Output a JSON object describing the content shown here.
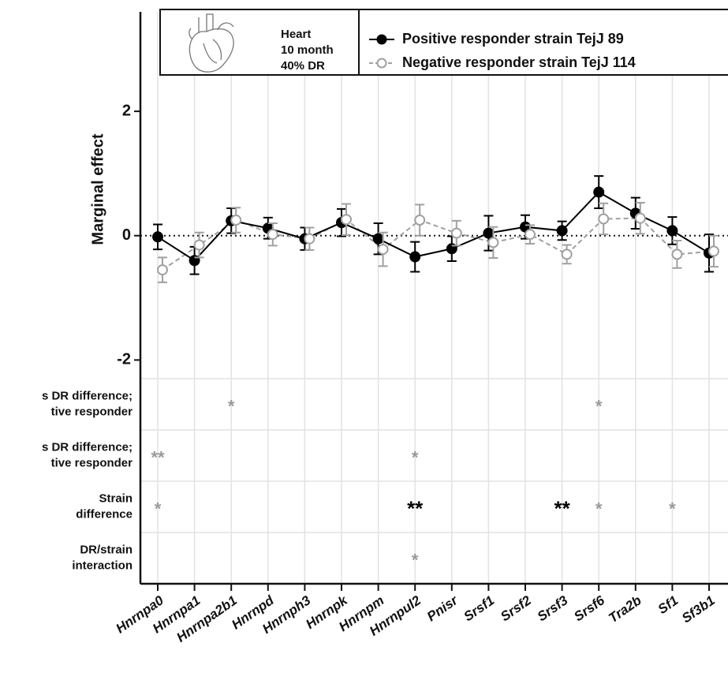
{
  "chart_data": {
    "type": "line",
    "ylabel": "Marginal effect",
    "categories": [
      "Hnrnpa0",
      "Hnrnpa1",
      "Hnrnpa2b1",
      "Hnrnpd",
      "Hnrnph3",
      "Hnrnpk",
      "Hnrnpm",
      "Hnrnpul2",
      "Pnisr",
      "Srsf1",
      "Srsf2",
      "Srsf3",
      "Srsf6",
      "Tra2b",
      "Sf1",
      "Sf3b1"
    ],
    "ylim": [
      -2.3,
      3.6
    ],
    "yticks": [
      -2,
      0,
      2
    ],
    "zero_line": true,
    "legend_box": {
      "lines": [
        "Heart",
        "10 month",
        "40% DR"
      ]
    },
    "series": [
      {
        "name": "Positive responder strain TejJ 89",
        "color": "#000000",
        "marker": "filled",
        "dashed": false,
        "values": [
          -0.02,
          -0.4,
          0.24,
          0.12,
          -0.05,
          0.21,
          -0.05,
          -0.34,
          -0.21,
          0.04,
          0.14,
          0.08,
          0.7,
          0.36,
          0.08,
          -0.28
        ],
        "errors": [
          0.2,
          0.22,
          0.2,
          0.17,
          0.18,
          0.22,
          0.25,
          0.24,
          0.2,
          0.28,
          0.19,
          0.15,
          0.26,
          0.25,
          0.22,
          0.3
        ]
      },
      {
        "name": "Negative responder strain TejJ 114",
        "color": "#a0a0a0",
        "marker": "open",
        "dashed": true,
        "values": [
          -0.55,
          -0.15,
          0.25,
          0.02,
          -0.05,
          0.26,
          -0.22,
          0.25,
          0.04,
          -0.11,
          0.02,
          -0.3,
          0.27,
          0.28,
          -0.3,
          -0.25
        ],
        "errors": [
          0.2,
          0.2,
          0.2,
          0.18,
          0.18,
          0.25,
          0.27,
          0.25,
          0.2,
          0.25,
          0.15,
          0.15,
          0.25,
          0.25,
          0.22,
          0.25
        ]
      }
    ],
    "significance": [
      {
        "label": [
          "s DR difference;",
          "tive responder"
        ],
        "marks": [
          null,
          null,
          {
            "text": "*",
            "color": "#999999"
          },
          null,
          null,
          null,
          null,
          null,
          null,
          null,
          null,
          null,
          {
            "text": "*",
            "color": "#999999"
          },
          null,
          null,
          null
        ]
      },
      {
        "label": [
          "s DR difference;",
          "tive responder"
        ],
        "marks": [
          {
            "text": "**",
            "color": "#999999"
          },
          null,
          null,
          null,
          null,
          null,
          null,
          {
            "text": "*",
            "color": "#999999"
          },
          null,
          null,
          null,
          null,
          null,
          null,
          null,
          null
        ]
      },
      {
        "label": [
          "Strain",
          "difference"
        ],
        "marks": [
          {
            "text": "*",
            "color": "#999999"
          },
          null,
          null,
          null,
          null,
          null,
          null,
          {
            "text": "**",
            "color": "#000000"
          },
          null,
          null,
          null,
          {
            "text": "**",
            "color": "#000000"
          },
          {
            "text": "*",
            "color": "#999999"
          },
          null,
          {
            "text": "*",
            "color": "#999999"
          },
          null
        ]
      },
      {
        "label": [
          "DR/strain",
          "interaction"
        ],
        "marks": [
          null,
          null,
          null,
          null,
          null,
          null,
          null,
          {
            "text": "*",
            "color": "#999999"
          },
          null,
          null,
          null,
          null,
          null,
          null,
          null,
          null
        ]
      }
    ]
  }
}
